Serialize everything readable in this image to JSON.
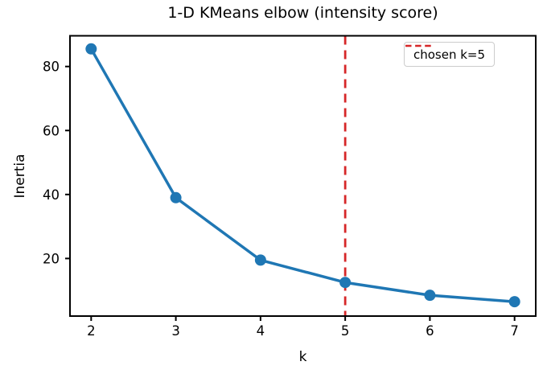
{
  "chart_data": {
    "type": "line",
    "title": "1-D KMeans elbow (intensity score)",
    "xlabel": "k",
    "ylabel": "Inertia",
    "x": [
      2,
      3,
      4,
      5,
      6,
      7
    ],
    "series": [
      {
        "name": "inertia",
        "values": [
          85.5,
          39.0,
          19.5,
          12.5,
          8.5,
          6.5
        ]
      }
    ],
    "x_ticks": [
      "2",
      "3",
      "4",
      "5",
      "6",
      "7"
    ],
    "y_ticks": [
      20,
      40,
      60,
      80
    ],
    "xlim": [
      1.75,
      7.25
    ],
    "ylim": [
      2.0,
      89.6
    ],
    "grid": false,
    "vline": {
      "x": 5,
      "label": "chosen k=5"
    },
    "legend": {
      "position": "upper right",
      "entries": [
        {
          "label": "chosen k=5"
        }
      ]
    },
    "colors": {
      "line": "#1f77b4",
      "marker": "#1f77b4",
      "vline": "#d62728",
      "axis": "#000000",
      "text": "#000000",
      "legend_border": "#cccccc",
      "background": "#ffffff"
    }
  }
}
